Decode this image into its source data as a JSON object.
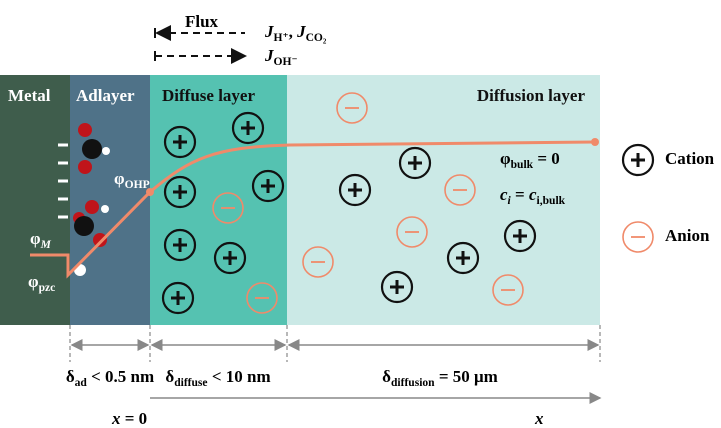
{
  "flux": {
    "title": "Flux",
    "items": [
      [
        {
          "text": "J",
          "italic": true
        },
        {
          "text": "H⁺",
          "sub": true
        },
        {
          "text": ", "
        },
        {
          "text": "J",
          "italic": true
        },
        {
          "text": "CO₂",
          "sub": true
        }
      ],
      [
        {
          "text": "J",
          "italic": true
        },
        {
          "text": "OH⁻",
          "sub": true
        }
      ]
    ]
  },
  "regions": [
    "Metal",
    "Adlayer",
    "Diffuse layer",
    "Diffusion layer"
  ],
  "potentials": {
    "ohp": [
      {
        "text": "φ"
      },
      {
        "text": "OHP",
        "sub": true
      }
    ],
    "m": [
      {
        "text": "φ"
      },
      {
        "text": "M",
        "sub": true,
        "italic": true
      }
    ],
    "pzc": [
      {
        "text": "φ"
      },
      {
        "text": "pzc",
        "sub": true
      }
    ],
    "bulk": [
      {
        "text": "φ"
      },
      {
        "text": "bulk",
        "sub": true
      },
      {
        "text": " = 0"
      }
    ],
    "conc": [
      {
        "text": "c",
        "italic": true
      },
      {
        "text": "i",
        "sub": true,
        "italic": true
      },
      {
        "text": " = "
      },
      {
        "text": "c",
        "italic": true
      },
      {
        "text": "i,bulk",
        "sub": true
      }
    ]
  },
  "legend": [
    "Cation",
    "Anion"
  ],
  "dimensions": [
    [
      {
        "text": "δ"
      },
      {
        "text": "ad",
        "sub": true
      },
      {
        "text": " < 0.5 nm"
      }
    ],
    [
      {
        "text": "δ"
      },
      {
        "text": "diffuse",
        "sub": true
      },
      {
        "text": " < 10 nm"
      }
    ],
    [
      {
        "text": "δ"
      },
      {
        "text": "diffusion",
        "sub": true
      },
      {
        "text": " = 50 μm"
      }
    ]
  ],
  "axis": {
    "origin": [
      {
        "text": "x",
        "italic": true
      },
      {
        "text": " = 0"
      }
    ],
    "end": [
      {
        "text": "x",
        "italic": true
      }
    ]
  }
}
